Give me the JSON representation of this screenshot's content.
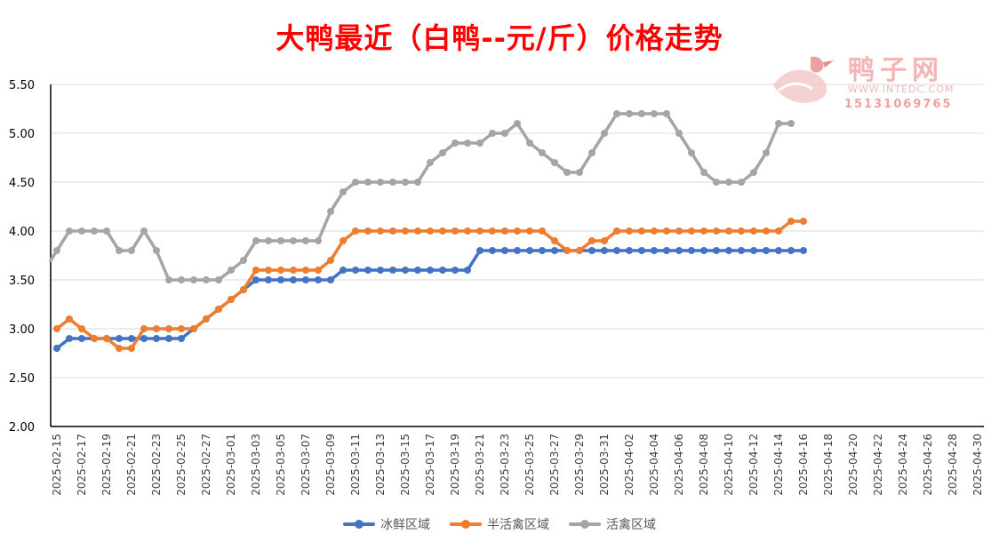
{
  "chart_data": {
    "type": "line",
    "title": "大鸭最近（白鸭--元/斤）价格走势",
    "xlabel": "",
    "ylabel": "",
    "ylim": [
      2.0,
      5.5
    ],
    "yticks": [
      "2.00",
      "2.50",
      "3.00",
      "3.50",
      "4.00",
      "4.50",
      "5.00",
      "5.50"
    ],
    "grid": "horizontal",
    "legend_position": "bottom",
    "x_start": "2025-02-15",
    "x_end": "2025-04-30",
    "x_tick_labels": [
      "2025-02-15",
      "2025-02-17",
      "2025-02-19",
      "2025-02-21",
      "2025-02-23",
      "2025-02-25",
      "2025-02-27",
      "2025-03-01",
      "2025-03-03",
      "2025-03-05",
      "2025-03-07",
      "2025-03-09",
      "2025-03-11",
      "2025-03-13",
      "2025-03-15",
      "2025-03-17",
      "2025-03-19",
      "2025-03-21",
      "2025-03-23",
      "2025-03-25",
      "2025-03-27",
      "2025-03-29",
      "2025-03-31",
      "2025-04-02",
      "2025-04-04",
      "2025-04-06",
      "2025-04-08",
      "2025-04-10",
      "2025-04-12",
      "2025-04-14",
      "2025-04-16",
      "2025-04-18",
      "2025-04-20",
      "2025-04-22",
      "2025-04-24",
      "2025-04-26",
      "2025-04-28",
      "2025-04-30"
    ],
    "series": [
      {
        "name": "冰鲜区域",
        "color": "#4472c4",
        "values": [
          2.8,
          2.9,
          2.9,
          2.9,
          2.9,
          2.9,
          2.9,
          2.9,
          2.9,
          2.9,
          2.9,
          3.0,
          3.1,
          3.2,
          3.3,
          3.4,
          3.5,
          3.5,
          3.5,
          3.5,
          3.5,
          3.5,
          3.5,
          3.6,
          3.6,
          3.6,
          3.6,
          3.6,
          3.6,
          3.6,
          3.6,
          3.6,
          3.6,
          3.6,
          3.8,
          3.8,
          3.8,
          3.8,
          3.8,
          3.8,
          3.8,
          3.8,
          3.8,
          3.8,
          3.8,
          3.8,
          3.8,
          3.8,
          3.8,
          3.8,
          3.8,
          3.8,
          3.8,
          3.8,
          3.8,
          3.8,
          3.8,
          3.8,
          3.8,
          3.8,
          3.8
        ]
      },
      {
        "name": "半活禽区域",
        "color": "#ed7d31",
        "values": [
          3.0,
          3.1,
          3.0,
          2.9,
          2.9,
          2.8,
          2.8,
          3.0,
          3.0,
          3.0,
          3.0,
          3.0,
          3.1,
          3.2,
          3.3,
          3.4,
          3.6,
          3.6,
          3.6,
          3.6,
          3.6,
          3.6,
          3.7,
          3.9,
          4.0,
          4.0,
          4.0,
          4.0,
          4.0,
          4.0,
          4.0,
          4.0,
          4.0,
          4.0,
          4.0,
          4.0,
          4.0,
          4.0,
          4.0,
          4.0,
          3.9,
          3.8,
          3.8,
          3.9,
          3.9,
          4.0,
          4.0,
          4.0,
          4.0,
          4.0,
          4.0,
          4.0,
          4.0,
          4.0,
          4.0,
          4.0,
          4.0,
          4.0,
          4.0,
          4.1,
          4.1
        ]
      },
      {
        "name": "活禽区域",
        "color": "#a5a5a5",
        "values": [
          3.8,
          4.0,
          4.0,
          4.0,
          4.0,
          3.8,
          3.8,
          4.0,
          3.8,
          3.5,
          3.5,
          3.5,
          3.5,
          3.5,
          3.6,
          3.7,
          3.9,
          3.9,
          3.9,
          3.9,
          3.9,
          3.9,
          4.2,
          4.4,
          4.5,
          4.5,
          4.5,
          4.5,
          4.5,
          4.5,
          4.7,
          4.8,
          4.9,
          4.9,
          4.9,
          5.0,
          5.0,
          5.1,
          4.9,
          4.8,
          4.7,
          4.6,
          4.6,
          4.8,
          5.0,
          5.2,
          5.2,
          5.2,
          5.2,
          5.2,
          5.0,
          4.8,
          4.6,
          4.5,
          4.5,
          4.5,
          4.6,
          4.8,
          5.1,
          5.1
        ]
      }
    ]
  },
  "watermark": {
    "name": "鸭子网",
    "url": "WWW.INTEDC.COM",
    "phone": "15131069765"
  }
}
